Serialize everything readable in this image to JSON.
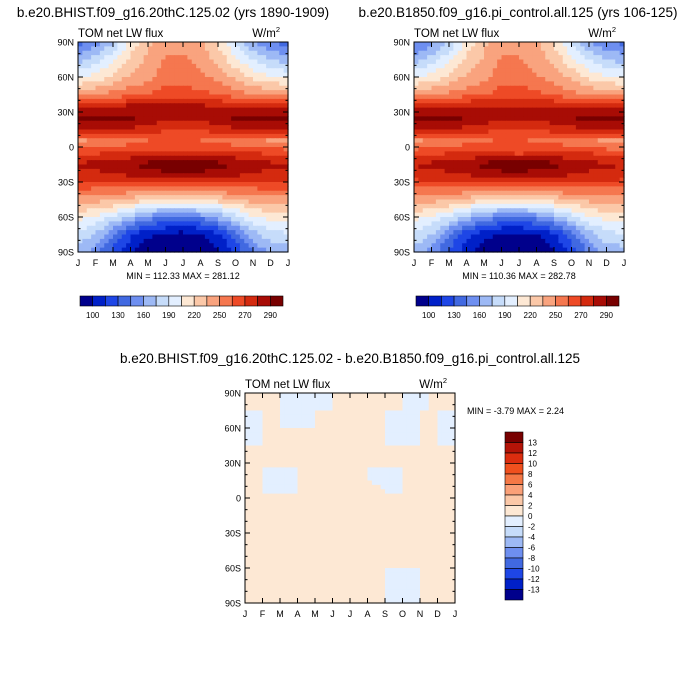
{
  "chart_data": [
    {
      "type": "heatmap",
      "title": "b.e20.BHIST.f09_g16.20thC.125.02 (yrs 1890-1909)",
      "field_label": "TOM net LW flux",
      "units_base": "W/m",
      "units_exp": "2",
      "x_ticks": [
        "J",
        "F",
        "M",
        "A",
        "M",
        "J",
        "J",
        "A",
        "S",
        "O",
        "N",
        "D",
        "J"
      ],
      "y_ticks": [
        "90N",
        "60N",
        "30N",
        "0",
        "30S",
        "60S",
        "90S"
      ],
      "y_range": [
        -90,
        90
      ],
      "min": 112.33,
      "max": 281.12,
      "stats_text": "MIN = 112.33 MAX = 281.12",
      "colorbar_labels": [
        "100",
        "130",
        "160",
        "190",
        "220",
        "250",
        "270",
        "290"
      ],
      "colorbar_orientation": "horizontal",
      "colors": [
        "#00008c",
        "#0020c8",
        "#1e46e6",
        "#4169e1",
        "#6e8ff0",
        "#9db9f5",
        "#c6dcfa",
        "#e3efff",
        "#fde8d4",
        "#fbc8a8",
        "#f9a37e",
        "#f5774f",
        "#ee4a26",
        "#d42a0f",
        "#a80c05",
        "#780000"
      ],
      "lats": [
        90,
        75,
        60,
        45,
        35,
        25,
        15,
        5,
        -5,
        -15,
        -25,
        -35,
        -45,
        -60,
        -75,
        -90
      ],
      "months": [
        "Jan",
        "Feb",
        "Mar",
        "Apr",
        "May",
        "Jun",
        "Jul",
        "Aug",
        "Sep",
        "Oct",
        "Nov",
        "Dec",
        "Jan"
      ],
      "values": [
        [
          150,
          160,
          175,
          200,
          215,
          225,
          225,
          220,
          205,
          185,
          165,
          155,
          150
        ],
        [
          170,
          180,
          195,
          210,
          220,
          230,
          230,
          225,
          215,
          200,
          185,
          175,
          170
        ],
        [
          195,
          200,
          210,
          220,
          225,
          235,
          235,
          230,
          225,
          215,
          205,
          198,
          195
        ],
        [
          225,
          228,
          232,
          235,
          238,
          245,
          245,
          242,
          238,
          233,
          228,
          226,
          225
        ],
        [
          255,
          258,
          260,
          262,
          262,
          262,
          262,
          262,
          260,
          258,
          256,
          255,
          255
        ],
        [
          275,
          275,
          275,
          272,
          268,
          265,
          265,
          265,
          268,
          272,
          275,
          275,
          275
        ],
        [
          260,
          262,
          260,
          258,
          255,
          250,
          248,
          250,
          255,
          258,
          260,
          260,
          260
        ],
        [
          225,
          228,
          230,
          235,
          238,
          240,
          240,
          238,
          236,
          232,
          228,
          226,
          225
        ],
        [
          245,
          248,
          250,
          252,
          252,
          250,
          248,
          250,
          252,
          252,
          250,
          246,
          245
        ],
        [
          262,
          264,
          266,
          270,
          275,
          280,
          281,
          280,
          275,
          270,
          266,
          263,
          262
        ],
        [
          255,
          256,
          258,
          260,
          262,
          265,
          265,
          264,
          262,
          260,
          258,
          256,
          255
        ],
        [
          240,
          240,
          240,
          238,
          236,
          235,
          235,
          236,
          238,
          240,
          240,
          240,
          240
        ],
        [
          225,
          222,
          220,
          215,
          210,
          205,
          205,
          208,
          212,
          218,
          222,
          225,
          225
        ],
        [
          200,
          195,
          185,
          172,
          160,
          155,
          155,
          158,
          168,
          182,
          195,
          200,
          200
        ],
        [
          185,
          175,
          155,
          135,
          125,
          120,
          118,
          120,
          130,
          150,
          170,
          182,
          185
        ],
        [
          170,
          160,
          140,
          125,
          115,
          113,
          113,
          115,
          120,
          135,
          155,
          168,
          170
        ]
      ]
    },
    {
      "type": "heatmap",
      "title": "b.e20.B1850.f09_g16.pi_control.all.125 (yrs 106-125)",
      "field_label": "TOM net LW flux",
      "units_base": "W/m",
      "units_exp": "2",
      "x_ticks": [
        "J",
        "F",
        "M",
        "A",
        "M",
        "J",
        "J",
        "A",
        "S",
        "O",
        "N",
        "D",
        "J"
      ],
      "y_ticks": [
        "90N",
        "60N",
        "30N",
        "0",
        "30S",
        "60S",
        "90S"
      ],
      "y_range": [
        -90,
        90
      ],
      "min": 110.36,
      "max": 282.78,
      "stats_text": "MIN = 110.36 MAX = 282.78",
      "colorbar_labels": [
        "100",
        "130",
        "160",
        "190",
        "220",
        "250",
        "270",
        "290"
      ],
      "colorbar_orientation": "horizontal",
      "colors": [
        "#00008c",
        "#0020c8",
        "#1e46e6",
        "#4169e1",
        "#6e8ff0",
        "#9db9f5",
        "#c6dcfa",
        "#e3efff",
        "#fde8d4",
        "#fbc8a8",
        "#f9a37e",
        "#f5774f",
        "#ee4a26",
        "#d42a0f",
        "#a80c05",
        "#780000"
      ],
      "lats": [
        90,
        75,
        60,
        45,
        35,
        25,
        15,
        5,
        -5,
        -15,
        -25,
        -35,
        -45,
        -60,
        -75,
        -90
      ],
      "months": [
        "Jan",
        "Feb",
        "Mar",
        "Apr",
        "May",
        "Jun",
        "Jul",
        "Aug",
        "Sep",
        "Oct",
        "Nov",
        "Dec",
        "Jan"
      ],
      "values": [
        [
          150,
          160,
          175,
          200,
          215,
          225,
          225,
          220,
          205,
          185,
          165,
          155,
          150
        ],
        [
          170,
          180,
          195,
          210,
          220,
          230,
          230,
          225,
          215,
          200,
          185,
          175,
          170
        ],
        [
          195,
          200,
          210,
          220,
          225,
          235,
          235,
          230,
          225,
          215,
          205,
          198,
          195
        ],
        [
          225,
          228,
          232,
          235,
          238,
          245,
          245,
          242,
          238,
          233,
          228,
          226,
          225
        ],
        [
          255,
          258,
          260,
          262,
          262,
          262,
          262,
          262,
          260,
          258,
          256,
          255,
          255
        ],
        [
          275,
          275,
          275,
          272,
          268,
          265,
          265,
          265,
          268,
          272,
          275,
          275,
          275
        ],
        [
          260,
          262,
          260,
          258,
          255,
          250,
          248,
          250,
          255,
          258,
          260,
          260,
          260
        ],
        [
          225,
          228,
          230,
          235,
          238,
          240,
          240,
          238,
          236,
          232,
          228,
          226,
          225
        ],
        [
          245,
          248,
          250,
          252,
          252,
          250,
          248,
          250,
          252,
          252,
          250,
          246,
          245
        ],
        [
          262,
          264,
          266,
          270,
          275,
          281,
          282,
          281,
          275,
          270,
          266,
          263,
          262
        ],
        [
          255,
          256,
          258,
          260,
          262,
          265,
          265,
          264,
          262,
          260,
          258,
          256,
          255
        ],
        [
          240,
          240,
          240,
          238,
          236,
          235,
          235,
          236,
          238,
          240,
          240,
          240,
          240
        ],
        [
          225,
          222,
          220,
          215,
          210,
          205,
          205,
          208,
          212,
          218,
          222,
          225,
          225
        ],
        [
          200,
          195,
          185,
          172,
          160,
          155,
          155,
          158,
          168,
          182,
          195,
          200,
          200
        ],
        [
          185,
          175,
          155,
          135,
          125,
          118,
          117,
          120,
          130,
          150,
          170,
          182,
          185
        ],
        [
          170,
          160,
          140,
          125,
          114,
          111,
          111,
          114,
          120,
          135,
          155,
          168,
          170
        ]
      ]
    },
    {
      "type": "heatmap",
      "title": "b.e20.BHIST.f09_g16.20thC.125.02 - b.e20.B1850.f09_g16.pi_control.all.125",
      "field_label": "TOM net LW flux",
      "units_base": "W/m",
      "units_exp": "2",
      "x_ticks": [
        "J",
        "F",
        "M",
        "A",
        "M",
        "J",
        "J",
        "A",
        "S",
        "O",
        "N",
        "D",
        "J"
      ],
      "y_ticks": [
        "90N",
        "60N",
        "30N",
        "0",
        "30S",
        "60S",
        "90S"
      ],
      "y_range": [
        -90,
        90
      ],
      "min": -3.79,
      "max": 2.24,
      "stats_text": "MIN =  -3.79 MAX =   2.24",
      "colorbar_labels": [
        "13",
        "12",
        "10",
        "8",
        "6",
        "4",
        "2",
        "0",
        "-2",
        "-4",
        "-6",
        "-8",
        "-10",
        "-12",
        "-13"
      ],
      "colorbar_orientation": "vertical",
      "colors": [
        "#780000",
        "#b41408",
        "#dc2d0f",
        "#f0501e",
        "#f57846",
        "#faa078",
        "#fbc8a8",
        "#fde8d4",
        "#e3efff",
        "#c6dcfa",
        "#9db9f5",
        "#6e8ff0",
        "#4169e1",
        "#1e46e6",
        "#0020c8",
        "#00008c"
      ],
      "lats": [
        90,
        75,
        60,
        45,
        35,
        25,
        15,
        5,
        -5,
        -15,
        -25,
        -35,
        -45,
        -60,
        -75,
        -90
      ],
      "months": [
        "Jan",
        "Feb",
        "Mar",
        "Apr",
        "May",
        "Jun",
        "Jul",
        "Aug",
        "Sep",
        "Oct",
        "Nov",
        "Dec",
        "Jan"
      ],
      "values": [
        [
          1,
          0.5,
          0,
          0,
          -0.5,
          0,
          0,
          0,
          0,
          0,
          -0.5,
          0.5,
          1
        ],
        [
          0,
          0,
          0,
          -0.5,
          0,
          0,
          0.5,
          0,
          0,
          0,
          0,
          0,
          0
        ],
        [
          -0.5,
          0,
          0,
          0,
          0,
          0,
          0,
          0,
          0,
          -0.5,
          0,
          0,
          -0.5
        ],
        [
          0,
          0,
          0,
          0,
          0,
          0,
          1,
          1,
          0,
          0,
          0,
          0,
          0
        ],
        [
          0,
          0,
          0,
          0,
          0,
          0,
          0,
          1,
          1,
          0,
          0,
          0,
          0
        ],
        [
          0,
          0,
          0,
          0,
          0,
          0,
          0,
          0,
          0,
          0,
          0,
          0,
          0
        ],
        [
          0,
          0,
          -0.5,
          0,
          0,
          0,
          0,
          0,
          -0.5,
          0,
          0,
          0,
          0
        ],
        [
          0.5,
          0,
          0,
          0,
          0,
          0,
          0,
          1,
          0,
          0,
          1,
          0.5,
          0.5
        ],
        [
          0,
          1,
          0,
          0,
          0,
          0,
          0,
          0,
          0,
          0,
          0,
          0,
          0
        ],
        [
          0,
          0,
          0,
          0,
          0,
          0,
          0,
          0,
          0,
          0,
          0,
          0,
          0
        ],
        [
          0,
          0,
          0,
          0,
          0,
          0,
          0,
          0,
          0,
          0,
          0,
          0,
          0
        ],
        [
          0,
          0,
          0,
          0,
          0,
          0,
          0,
          0,
          0,
          0,
          0,
          0,
          0
        ],
        [
          0,
          0,
          0,
          0,
          0,
          0,
          0,
          0,
          0,
          0,
          0,
          0,
          0
        ],
        [
          0.5,
          0,
          0,
          0,
          0,
          0,
          0,
          1,
          0,
          0,
          0,
          0,
          0.5
        ],
        [
          0,
          0,
          0,
          0,
          0,
          0,
          0,
          0,
          0,
          -1,
          0,
          0,
          0
        ],
        [
          0,
          0,
          0,
          0,
          0,
          0,
          0,
          0,
          0,
          0,
          0,
          0,
          0
        ]
      ]
    }
  ]
}
